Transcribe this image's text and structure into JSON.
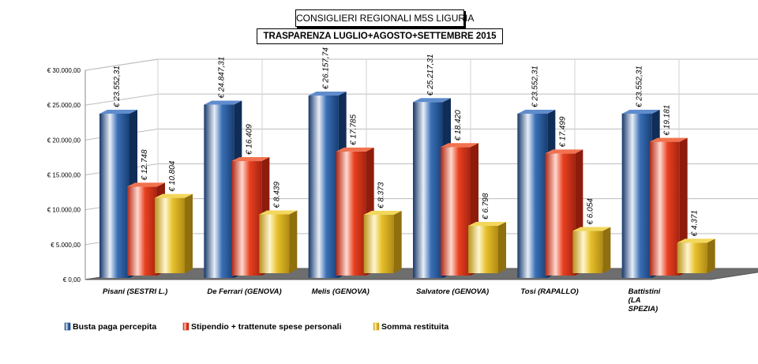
{
  "title": "CONSIGLIERI REGIONALI M5S LIGURIA",
  "subtitle": "TRASPARENZA LUGLIO+AGOSTO+SETTEMBRE 2015",
  "chart_data": {
    "type": "bar",
    "title": "CONSIGLIERI REGIONALI M5S LIGURIA",
    "subtitle": "TRASPARENZA LUGLIO+AGOSTO+SETTEMBRE 2015",
    "categories": [
      "Pisani (SESTRI  L.)",
      "De Ferrari  (GENOVA)",
      "Melis  (GENOVA)",
      "Salvatore (GENOVA)",
      "Tosi (RAPALLO)",
      "Battistini (LA SPEZIA)"
    ],
    "category_lines": [
      [
        "Pisani (SESTRI  L.)"
      ],
      [
        "De Ferrari  (GENOVA)"
      ],
      [
        "Melis  (GENOVA)"
      ],
      [
        "Salvatore (GENOVA)"
      ],
      [
        "Tosi (RAPALLO)"
      ],
      [
        "Battistini",
        "(LA",
        "SPEZIA)"
      ]
    ],
    "series": [
      {
        "name": "Busta paga percepita",
        "color": "#1f4e8c",
        "values": [
          23552.31,
          24847.31,
          26157.74,
          25217.31,
          23552.31,
          23552.31
        ],
        "labels": [
          "€ 23.552,31",
          "€ 24.847,31",
          "€ 26.157,74",
          "€ 25.217,31",
          "€ 23.552,31",
          "€ 23.552,31"
        ]
      },
      {
        "name": "Stipendio + trattenute spese personali",
        "color": "#d9321a",
        "values": [
          12748,
          16409,
          17785,
          18420,
          17499,
          19181
        ],
        "labels": [
          "€ 12.748",
          "€ 16.409",
          "€ 17.785",
          "€ 18.420",
          "€ 17.499",
          "€ 19.181"
        ]
      },
      {
        "name": "Somma restituita",
        "color": "#e0b820",
        "values": [
          10804,
          8439,
          8373,
          6798,
          6054,
          4371
        ],
        "labels": [
          "€ 10.804",
          "€ 8.439",
          "€ 8.373",
          "€ 6.798",
          "€ 6.054",
          "€ 4.371"
        ]
      }
    ],
    "yticks": [
      0,
      5000,
      10000,
      15000,
      20000,
      25000,
      30000
    ],
    "ytick_labels": [
      "€ 0,00",
      "€ 5.000,00",
      "€ 10.000,00",
      "€ 15.000,00",
      "€ 20.000,00",
      "€ 25.000,00",
      "€ 30.000,00"
    ],
    "ylim": [
      0,
      30000
    ],
    "grid": true,
    "legend": "bottom-left",
    "xlabel": "",
    "ylabel": ""
  }
}
